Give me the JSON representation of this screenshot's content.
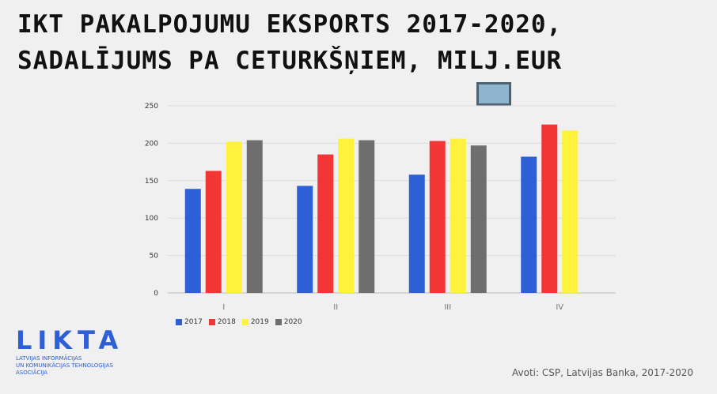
{
  "title": {
    "line1": "IKT PAKALPOJUMU EKSPORTS 2017-2020,",
    "line2": "SADALĪJUMS PA CETURKŠŅIEM, MILJ.EUR"
  },
  "logo": {
    "name": "LIKTA",
    "line1": "LATVIJAS INFORMĀCIJAS",
    "line2": "UN KOMUNIKĀCIJAS TEHNOLOĢIJAS",
    "line3": "ASOCIĀCIJA"
  },
  "source": "Avoti: CSP, Latvijas Banka, 2017-2020",
  "chart_data": {
    "type": "bar",
    "categories": [
      "I",
      "II",
      "III",
      "IV"
    ],
    "series": [
      {
        "name": "2017",
        "color": "#2d5fd6",
        "values": [
          139,
          143,
          158,
          182
        ]
      },
      {
        "name": "2018",
        "color": "#f23535",
        "values": [
          163,
          185,
          203,
          225
        ]
      },
      {
        "name": "2019",
        "color": "#fef23c",
        "values": [
          202,
          206,
          206,
          217
        ]
      },
      {
        "name": "2020",
        "color": "#6e6e6e",
        "values": [
          204,
          204,
          197,
          null
        ]
      }
    ],
    "y_ticks": [
      0,
      50,
      100,
      150,
      200,
      250
    ],
    "ylim": [
      0,
      250
    ],
    "grid": true,
    "legend_position": "bottom-left"
  }
}
